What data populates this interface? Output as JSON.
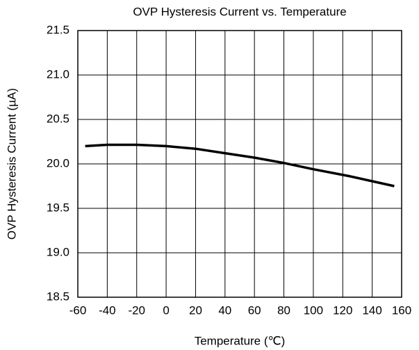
{
  "chart_data": {
    "type": "line",
    "title": "OVP Hysteresis Current vs. Temperature",
    "x_label": "Temperature (℃)",
    "y_label": "OVP Hysteresis Current (µA)",
    "series": [
      {
        "name": "OVP Hysteresis Current",
        "color": "#000000",
        "x": [
          -55,
          -40,
          -20,
          0,
          20,
          40,
          60,
          80,
          100,
          125,
          155
        ],
        "values": [
          20.2,
          20.215,
          20.215,
          20.2,
          20.17,
          20.12,
          20.07,
          20.01,
          19.94,
          19.86,
          19.75
        ]
      }
    ],
    "xlim": [
      -60,
      160
    ],
    "xticks": [
      -60,
      -40,
      -20,
      0,
      20,
      40,
      60,
      80,
      100,
      120,
      140,
      160
    ],
    "ylim": [
      18.5,
      21.5
    ],
    "yticks": [
      18.5,
      {
        "value": 19,
        "label": "19.0"
      },
      19.5,
      {
        "value": 20,
        "label": "20.0"
      },
      20.5,
      {
        "value": 21,
        "label": "21.0"
      },
      21.5
    ],
    "grid": true
  }
}
